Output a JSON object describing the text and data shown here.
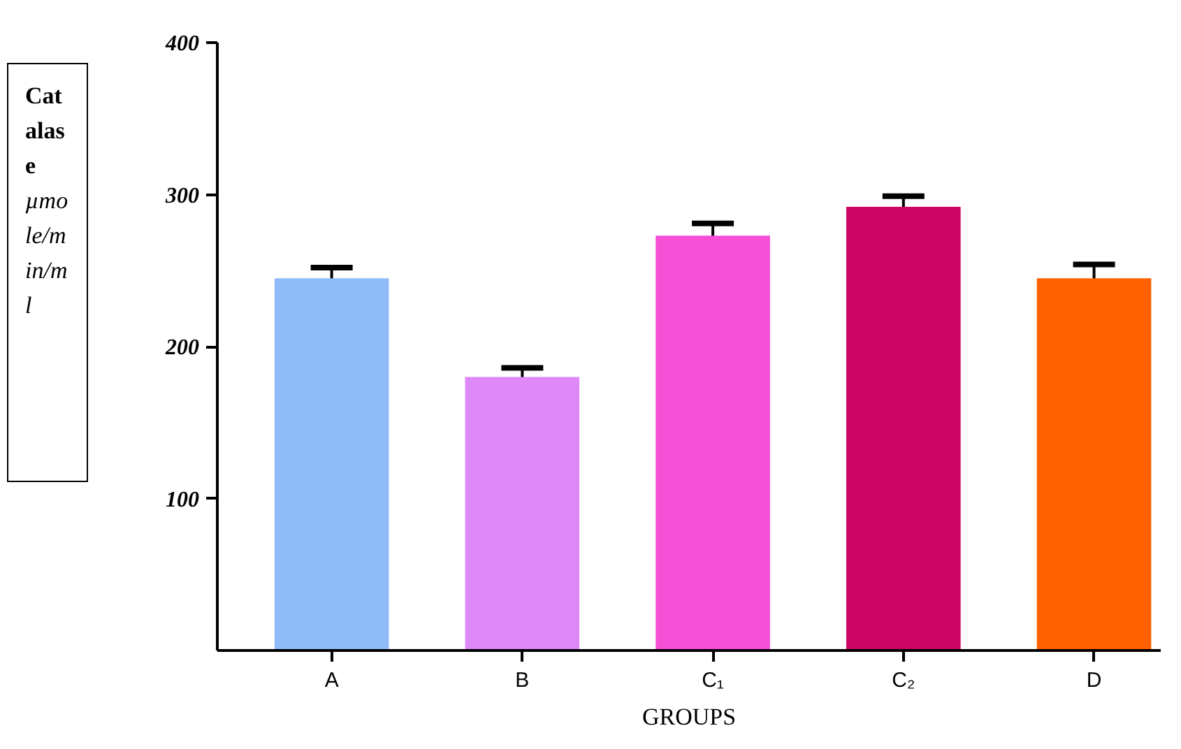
{
  "chart_data": {
    "type": "bar",
    "categories": [
      "A",
      "B",
      "C₁",
      "C₂",
      "D"
    ],
    "values": [
      245,
      180,
      273,
      292,
      245
    ],
    "errors": [
      7,
      6,
      8,
      7,
      9
    ],
    "colors": [
      "#8fbcf8",
      "#dd8af8",
      "#f54fd6",
      "#cc0662",
      "#ff6100"
    ],
    "xlabel": "GROUPS",
    "ylabel": "Catalase µmole/min/ml",
    "ylim": [
      0,
      400
    ],
    "yticks": [
      100,
      200,
      300,
      400
    ],
    "grid": false
  }
}
